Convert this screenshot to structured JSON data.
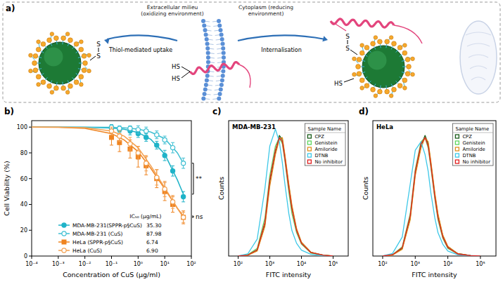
{
  "diagram": {
    "panel": "a)",
    "extracellular": "Extracellular milieu (oxidizing environment)",
    "cytoplasm": "Cytoplasm (reducing environment)",
    "uptake": "Thiol-mediated uptake",
    "internalisation": "Internalisation",
    "disulfide_outside": [
      "S",
      "S"
    ],
    "thiols_membrane": [
      "HS",
      "HS"
    ],
    "disulfide_inside": [
      "S",
      "S"
    ],
    "thiol_inside": "HS"
  },
  "chart_data": [
    {
      "panel": "b)",
      "type": "line",
      "x_label": "Concentration of CuS (μg/ml)",
      "y_label": "Cell Viability (%)",
      "log": "x",
      "xlim": [
        0.0001,
        100
      ],
      "xticks": [
        {
          "value": 0.0001,
          "label": "10⁻⁴"
        },
        {
          "value": 0.001,
          "label": "10⁻³"
        },
        {
          "value": 0.01,
          "label": "10⁻²"
        },
        {
          "value": 0.1,
          "label": "10⁻¹"
        },
        {
          "value": 1,
          "label": "10⁰"
        },
        {
          "value": 10,
          "label": "10¹"
        },
        {
          "value": 100,
          "label": "10²"
        }
      ],
      "ylim": [
        0,
        105
      ],
      "yticks": [
        0,
        20,
        40,
        60,
        80,
        100
      ],
      "legend": "lower left",
      "legend_title": "IC₅₀ (μg/mL)",
      "annotations": [
        "**",
        "ns"
      ],
      "x": [
        0.1,
        0.2,
        0.5,
        1,
        2,
        5,
        10,
        20,
        50
      ],
      "series": [
        {
          "name": "MDA-MB-231(SPPR-p§CuS)",
          "color": "#1fb3c8",
          "marker": "circle",
          "line_style": "solid",
          "ic50": "35.30",
          "values": [
            99,
            98,
            97,
            95,
            92,
            86,
            78,
            66,
            46
          ],
          "errors": [
            2,
            2,
            3,
            3,
            3,
            3,
            4,
            4,
            4
          ],
          "fit": {
            "x": [
              0.0001,
              0.001,
              0.01,
              0.1,
              0.3,
              1,
              3,
              10,
              30,
              50
            ],
            "values": [
              100,
              100,
              99.9,
              99.3,
              98.3,
              95.8,
              90.5,
              79,
              59,
              48
            ]
          }
        },
        {
          "name": "MDA-MB-231 (CuS)",
          "color": "#3fbfd2",
          "marker": "open-circle",
          "line_style": "solid",
          "ic50": "87.98",
          "values": [
            100,
            99,
            99,
            98,
            97,
            94,
            90,
            84,
            72
          ],
          "errors": [
            2,
            2,
            2,
            3,
            3,
            3,
            3,
            4,
            4
          ],
          "fit": {
            "x": [
              0.0001,
              0.001,
              0.01,
              0.1,
              0.3,
              1,
              3,
              10,
              30,
              50
            ],
            "values": [
              100,
              100,
              100,
              99.8,
              99.4,
              98.4,
              96.2,
              91,
              80,
              72
            ]
          }
        },
        {
          "name": "HeLa (SPPR-p§CuS)",
          "color": "#ef8421",
          "marker": "square",
          "line_style": "solid",
          "ic50": "6.74",
          "values": [
            92,
            88,
            83,
            77,
            70,
            60,
            50,
            40,
            30
          ],
          "errors": [
            6,
            7,
            7,
            8,
            7,
            7,
            7,
            6,
            5
          ],
          "fit": {
            "x": [
              0.0001,
              0.001,
              0.01,
              0.1,
              0.3,
              1,
              3,
              10,
              30,
              50
            ],
            "values": [
              100,
              99.8,
              99,
              95,
              90,
              81,
              68,
              52,
              37,
              31
            ]
          }
        },
        {
          "name": "HeLa (CuS)",
          "color": "#f3a050",
          "marker": "open-circle",
          "line_style": "solid",
          "ic50": "6.90",
          "values": [
            97,
            93,
            87,
            80,
            72,
            61,
            52,
            42,
            30
          ],
          "errors": [
            3,
            4,
            5,
            5,
            6,
            6,
            6,
            5,
            4
          ],
          "fit": {
            "x": [
              0.0001,
              0.001,
              0.01,
              0.1,
              0.3,
              1,
              3,
              10,
              30,
              50
            ],
            "values": [
              100,
              100,
              99.6,
              97,
              93,
              84,
              70,
              53,
              37,
              30
            ]
          }
        }
      ]
    },
    {
      "panel": "c)",
      "type": "line",
      "title": "MDA-MB-231",
      "x_label": "FITC intensity",
      "y_label": "Counts",
      "log": "x",
      "tick_labels": "x",
      "xlim": [
        50,
        300000
      ],
      "xticks": [
        {
          "value": 100,
          "label": "10²"
        },
        {
          "value": 1000,
          "label": "10³"
        },
        {
          "value": 10000,
          "label": "10⁴"
        },
        {
          "value": 100000,
          "label": "10⁵"
        }
      ],
      "ylim": [
        0,
        320
      ],
      "legend": "upper right",
      "legend_title": "Sample Name",
      "x": [
        100,
        200,
        400,
        700,
        1000,
        1500,
        2000,
        2500,
        3000,
        4000,
        5000,
        7000,
        10000,
        20000,
        50000,
        100000
      ],
      "series": [
        {
          "name": "CPZ",
          "color": "#1a5c1a",
          "line_style": "solid",
          "values": [
            0,
            2,
            14,
            75,
            175,
            245,
            285,
            275,
            235,
            165,
            115,
            62,
            32,
            9,
            2,
            0
          ]
        },
        {
          "name": "Genistein",
          "color": "#5ed65e",
          "line_style": "solid",
          "values": [
            0,
            3,
            18,
            90,
            190,
            260,
            280,
            265,
            225,
            150,
            100,
            55,
            28,
            7,
            2,
            0
          ]
        },
        {
          "name": "Amiloride",
          "color": "#e09020",
          "line_style": "solid",
          "values": [
            0,
            2,
            12,
            70,
            165,
            240,
            275,
            280,
            240,
            170,
            120,
            65,
            33,
            9,
            2,
            0
          ]
        },
        {
          "name": "DTNB",
          "color": "#3dc8e8",
          "line_style": "solid",
          "values": [
            0,
            5,
            40,
            160,
            260,
            300,
            270,
            220,
            170,
            100,
            60,
            30,
            14,
            4,
            1,
            0
          ]
        },
        {
          "name": "No inhibitor",
          "color": "#e02020",
          "line_style": "solid",
          "values": [
            0,
            2,
            15,
            80,
            180,
            250,
            280,
            270,
            230,
            160,
            110,
            60,
            30,
            8,
            2,
            0
          ]
        }
      ]
    },
    {
      "panel": "d)",
      "type": "line",
      "title": "HeLa",
      "x_label": "FITC intensity",
      "y_label": "Counts",
      "log": "x",
      "tick_labels": "x",
      "xlim": [
        50,
        300000
      ],
      "xticks": [
        {
          "value": 100,
          "label": "10²"
        },
        {
          "value": 1000,
          "label": "10³"
        },
        {
          "value": 10000,
          "label": "10⁴"
        },
        {
          "value": 100000,
          "label": "10⁵"
        }
      ],
      "ylim": [
        0,
        320
      ],
      "legend": "upper right",
      "legend_title": "Sample Name",
      "x": [
        100,
        200,
        400,
        700,
        1000,
        1500,
        2000,
        2500,
        3000,
        4000,
        5000,
        7000,
        10000,
        20000,
        50000,
        100000
      ],
      "series": [
        {
          "name": "CPZ",
          "color": "#1a5c1a",
          "line_style": "solid",
          "values": [
            0,
            3,
            18,
            90,
            195,
            260,
            285,
            265,
            220,
            145,
            95,
            48,
            22,
            6,
            1,
            0
          ]
        },
        {
          "name": "Genistein",
          "color": "#5ed65e",
          "line_style": "solid",
          "values": [
            0,
            3,
            22,
            100,
            205,
            270,
            280,
            255,
            210,
            135,
            85,
            42,
            18,
            5,
            1,
            0
          ]
        },
        {
          "name": "Amiloride",
          "color": "#e09020",
          "line_style": "solid",
          "values": [
            0,
            2,
            16,
            85,
            190,
            255,
            280,
            270,
            225,
            150,
            100,
            50,
            23,
            6,
            1,
            0
          ]
        },
        {
          "name": "DTNB",
          "color": "#3dc8e8",
          "line_style": "solid",
          "values": [
            0,
            6,
            45,
            170,
            250,
            270,
            240,
            200,
            150,
            90,
            55,
            28,
            12,
            3,
            1,
            0
          ]
        },
        {
          "name": "No inhibitor",
          "color": "#e02020",
          "line_style": "solid",
          "values": [
            0,
            3,
            20,
            95,
            200,
            265,
            280,
            260,
            215,
            140,
            90,
            45,
            20,
            5,
            1,
            0
          ]
        }
      ]
    }
  ]
}
